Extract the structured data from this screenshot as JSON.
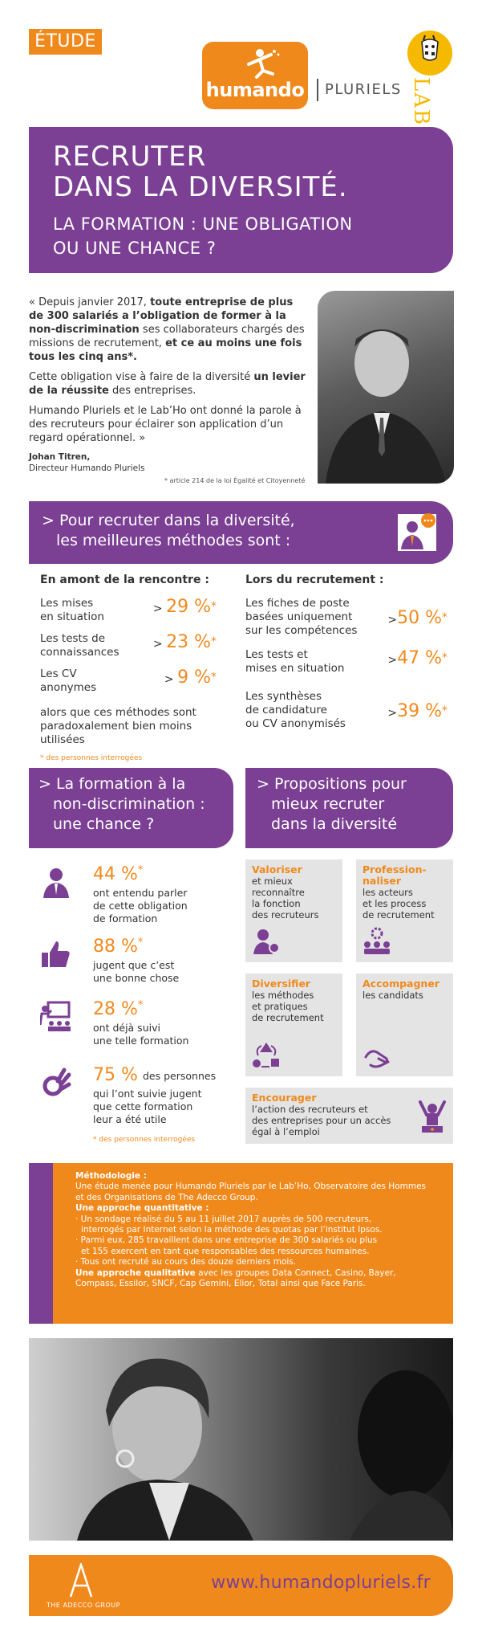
{
  "header": {
    "tag": "ÉTUDE",
    "brand": "humando",
    "sub_brand": "PLURIELS",
    "partner": "LABHO"
  },
  "hero": {
    "title_line1": "RECRUTER",
    "title_line2": "DANS LA DIVERSITÉ.",
    "subtitle_line1": "LA FORMATION : UNE OBLIGATION",
    "subtitle_line2": "OU UNE CHANCE ?"
  },
  "quote": {
    "p1_a": "« Depuis janvier 2017, ",
    "p1_b": "toute entreprise de plus de 300 salariés a l’obligation de former à la non-discrimination",
    "p1_c": " ses collaborateurs chargés des missions de recrutement, ",
    "p1_d": "et ce au moins une fois tous les cinq ans*.",
    "p2_a": "Cette obligation vise à faire de la diversité ",
    "p2_b": "un levier de la réussite",
    "p2_c": " des entreprises.",
    "p3": "Humando Pluriels et le Lab’Ho ont donné la parole à des recruteurs pour éclairer son application d’un regard opérationnel. »",
    "author": "Johan Titren,",
    "author_role": "Directeur Humando Pluriels",
    "footnote": "* article 214 de la loi Égalité et Citoyenneté"
  },
  "methods": {
    "title_line1": "> Pour recruter dans la diversité,",
    "title_line2": "les meilleures méthodes sont :",
    "left_heading": "En amont de la rencontre :",
    "left": [
      {
        "l1": "Les mises",
        "l2": "en situation",
        "value": "29 %",
        "star": "*"
      },
      {
        "l1": "Les tests de",
        "l2": "connaissances",
        "value": "23 %",
        "star": "*"
      },
      {
        "l1": "Les CV",
        "l2": "anonymes",
        "value": "9 %",
        "star": "*"
      }
    ],
    "left_note_l1": "alors que ces méthodes sont",
    "left_note_l2": "paradoxalement bien moins utilisées",
    "respondents": "* des personnes interrogées",
    "right_heading": "Lors du recrutement :",
    "right": [
      {
        "l1": "Les fiches de poste",
        "l2": "basées uniquement",
        "l3": "sur les compétences",
        "value": "50 %",
        "star": "*"
      },
      {
        "l1": "Les tests et",
        "l2": "mises en situation",
        "l3": "",
        "value": "47 %",
        "star": "*"
      },
      {
        "l1": "Les synthèses",
        "l2": "de candidature",
        "l3": "ou CV anonymisés",
        "value": "39 %",
        "star": "*"
      }
    ]
  },
  "formation": {
    "title_line1": "> La formation à la",
    "title_line2": "non-discrimination :",
    "title_line3": "une chance ?",
    "stats": [
      {
        "value": "44 %",
        "star": "*",
        "l1": "ont entendu parler",
        "l2": "de cette obligation",
        "l3": "de formation",
        "l4": ""
      },
      {
        "value": "88 %",
        "star": "*",
        "l1": "jugent que c’est",
        "l2": "une bonne chose",
        "l3": "",
        "l4": ""
      },
      {
        "value": "28 %",
        "star": "*",
        "l1": "ont déjà suivi",
        "l2": "une telle formation",
        "l3": "",
        "l4": ""
      },
      {
        "value": "75 %",
        "star": "",
        "l1": "des personnes",
        "l2": "qui l’ont suivie jugent",
        "l3": "que cette formation",
        "l4": "leur a été utile"
      }
    ],
    "respondents": "* des personnes interrogées"
  },
  "proposals": {
    "title_line1": "> Propositions pour",
    "title_line2": "mieux recruter",
    "title_line3": "dans la diversité",
    "cards": [
      {
        "head1": "Valoriser",
        "head2": "",
        "l1": "et mieux",
        "l2": "reconnaître",
        "l3": "la fonction",
        "l4": "des recruteurs"
      },
      {
        "head1": "Profession-",
        "head2": "naliser",
        "l1": "les acteurs",
        "l2": "et les process",
        "l3": "de recrutement",
        "l4": ""
      },
      {
        "head1": "Diversifier",
        "head2": "",
        "l1": "les méthodes",
        "l2": "et pratiques",
        "l3": "de recrutement",
        "l4": ""
      },
      {
        "head1": "Accompagner",
        "head2": "",
        "l1": "les candidats",
        "l2": "",
        "l3": "",
        "l4": ""
      }
    ],
    "encourage_head": "Encourager",
    "encourage_l1": "l’action des recruteurs et",
    "encourage_l2": "des entreprises pour un accès",
    "encourage_l3": "égal à l’emploi"
  },
  "methodology": {
    "title": "Méthodologie :",
    "intro_l1": "Une étude menée pour Humando Pluriels par le Lab’Ho, Observatoire des Hommes",
    "intro_l2": "et des Organisations de The Adecco Group.",
    "quant_title": "Une approche quantitative :",
    "b1_l1": "· Un sondage réalisé du 5 au 11 juillet 2017 auprès de 500 recruteurs,",
    "b1_l2": "interrogés par Internet selon la méthode des quotas par l’institut Ipsos.",
    "b2_l1": "· Parmi eux, 285 travaillent dans une entreprise de 300 salariés ou plus",
    "b2_l2": "et 155 exercent en tant que responsables des ressources humaines.",
    "b3": "· Tous ont recruté au cours des douze derniers mois.",
    "qual_title": "Une approche qualitative",
    "qual_l1": " avec les groupes Data Connect, Casino, Bayer,",
    "qual_l2": "Compass, Essilor, SNCF, Cap Gemini, Elior, Total ainsi que Face Paris."
  },
  "footer": {
    "group": "THE ADECCO GROUP",
    "url": "www.humandopluriels.fr"
  },
  "colors": {
    "purple": "#7b3f94",
    "orange": "#f0891c",
    "grey": "#e4e4e4"
  }
}
